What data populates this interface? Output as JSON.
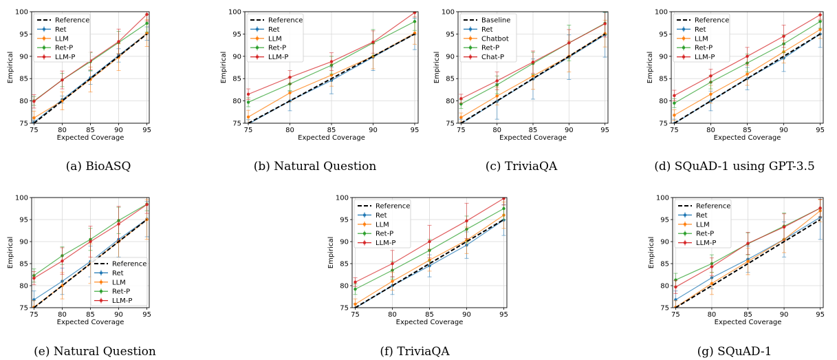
{
  "colors": {
    "reference": "#000000",
    "Ret": "#1f77b4",
    "LLM": "#ff7f0e",
    "Ret-P": "#2ca02c",
    "LLM-P": "#d62728",
    "grid": "#d9d9d9",
    "frame": "#000000"
  },
  "chart_data": [
    {
      "type": "line",
      "caption": "(a) BioASQ",
      "xlabel": "Expected Coverage",
      "ylabel": "Empirical",
      "xlim": [
        75,
        95
      ],
      "ylim": [
        75,
        100
      ],
      "x": [
        75,
        80,
        85,
        90,
        95
      ],
      "xticks": [
        "75",
        "80",
        "85",
        "90",
        "95"
      ],
      "yticks": [
        "75",
        "80",
        "85",
        "90",
        "95",
        "100"
      ],
      "grid": true,
      "legend_position": "top-left",
      "reference": {
        "name": "Reference",
        "values": [
          75,
          80,
          85,
          90,
          95
        ]
      },
      "series": [
        {
          "name": "Ret",
          "color_key": "Ret",
          "values": [
            75.2,
            80.3,
            85.2,
            90.2,
            95.1
          ],
          "err": [
            0.5,
            0.8,
            1.5,
            1.5,
            1.5
          ]
        },
        {
          "name": "LLM",
          "color_key": "LLM",
          "values": [
            76.2,
            80.0,
            84.8,
            89.8,
            95.2
          ],
          "err": [
            1.5,
            2.0,
            2.8,
            3.0,
            3.0
          ]
        },
        {
          "name": "Ret-P",
          "color_key": "Ret-P",
          "values": [
            80.0,
            84.7,
            88.8,
            93.1,
            97.4
          ],
          "err": [
            1.0,
            1.5,
            2.0,
            2.5,
            2.0
          ]
        },
        {
          "name": "LLM-P",
          "color_key": "LLM-P",
          "values": [
            79.9,
            84.7,
            89.0,
            93.3,
            99.4
          ],
          "err": [
            1.5,
            2.0,
            2.0,
            2.8,
            1.5
          ]
        }
      ]
    },
    {
      "type": "line",
      "caption": "(b) Natural Question",
      "xlabel": "Expected Coverage",
      "ylabel": "Empirical",
      "xlim": [
        75,
        95
      ],
      "ylim": [
        75,
        100
      ],
      "x": [
        75,
        80,
        85,
        90,
        95
      ],
      "xticks": [
        "75",
        "80",
        "85",
        "90",
        "95"
      ],
      "yticks": [
        "75",
        "80",
        "85",
        "90",
        "95",
        "100"
      ],
      "grid": true,
      "legend_position": "top-left",
      "reference": {
        "name": "Reference",
        "values": [
          75,
          80,
          85,
          90,
          95
        ]
      },
      "series": [
        {
          "name": "Ret",
          "color_key": "Ret",
          "values": [
            74.8,
            80.0,
            84.6,
            89.8,
            95.0
          ],
          "err": [
            1.0,
            2.2,
            3.0,
            3.0,
            3.5
          ]
        },
        {
          "name": "LLM",
          "color_key": "LLM",
          "values": [
            76.4,
            81.8,
            85.8,
            90.0,
            95.2
          ],
          "err": [
            1.5,
            2.0,
            2.5,
            2.8,
            2.5
          ]
        },
        {
          "name": "Ret-P",
          "color_key": "Ret-P",
          "values": [
            79.7,
            83.8,
            88.0,
            93.0,
            97.8
          ],
          "err": [
            1.0,
            1.5,
            2.0,
            3.0,
            2.0
          ]
        },
        {
          "name": "LLM-P",
          "color_key": "LLM-P",
          "values": [
            81.5,
            85.3,
            88.8,
            93.2,
            99.8
          ],
          "err": [
            1.2,
            1.5,
            2.0,
            2.5,
            1.0
          ]
        }
      ]
    },
    {
      "type": "line",
      "caption": "(c) TriviaQA",
      "xlabel": "Expected Coverage",
      "ylabel": "Empirical",
      "xlim": [
        75,
        95
      ],
      "ylim": [
        75,
        100
      ],
      "x": [
        75,
        80,
        85,
        90,
        95
      ],
      "xticks": [
        "75",
        "80",
        "85",
        "90",
        "95"
      ],
      "yticks": [
        "75",
        "80",
        "85",
        "90",
        "95",
        "100"
      ],
      "grid": true,
      "legend_position": "top-left",
      "reference": {
        "name": "Baseline",
        "values": [
          75,
          80,
          85,
          90,
          95
        ]
      },
      "series": [
        {
          "name": "Ret",
          "color_key": "Ret",
          "values": [
            74.9,
            79.9,
            84.9,
            89.8,
            94.8
          ],
          "err": [
            1.0,
            4.0,
            4.5,
            5.0,
            5.0
          ]
        },
        {
          "name": "Chatbot",
          "color_key": "LLM",
          "values": [
            76.3,
            81.1,
            85.6,
            90.0,
            95.1
          ],
          "err": [
            1.0,
            2.0,
            3.0,
            3.5,
            3.0
          ]
        },
        {
          "name": "Ret-P",
          "color_key": "Ret-P",
          "values": [
            79.3,
            83.6,
            88.4,
            93.0,
            97.4
          ],
          "err": [
            1.0,
            2.0,
            2.5,
            4.0,
            2.5
          ]
        },
        {
          "name": "Chat-P",
          "color_key": "LLM-P",
          "values": [
            80.5,
            84.5,
            88.7,
            93.0,
            97.3
          ],
          "err": [
            1.0,
            2.0,
            2.5,
            3.0,
            3.0
          ]
        }
      ]
    },
    {
      "type": "line",
      "caption": "(d) SQuAD-1 using GPT-3.5",
      "xlabel": "Expected Coverage",
      "ylabel": "Empirical",
      "xlim": [
        75,
        95
      ],
      "ylim": [
        75,
        100
      ],
      "x": [
        75,
        80,
        85,
        90,
        95
      ],
      "xticks": [
        "75",
        "80",
        "85",
        "90",
        "95"
      ],
      "yticks": [
        "75",
        "80",
        "85",
        "90",
        "95",
        "100"
      ],
      "grid": true,
      "legend_position": "top-left",
      "reference": {
        "name": "Reference",
        "values": [
          75,
          80,
          85,
          90,
          95
        ]
      },
      "series": [
        {
          "name": "Ret",
          "color_key": "Ret",
          "values": [
            74.9,
            80.0,
            85.0,
            89.6,
            95.0
          ],
          "err": [
            1.0,
            2.2,
            2.5,
            3.0,
            3.0
          ]
        },
        {
          "name": "LLM",
          "color_key": "LLM",
          "values": [
            76.8,
            81.5,
            86.0,
            91.0,
            96.0
          ],
          "err": [
            1.2,
            2.0,
            2.5,
            2.5,
            2.0
          ]
        },
        {
          "name": "Ret-P",
          "color_key": "Ret-P",
          "values": [
            79.5,
            84.2,
            88.5,
            92.8,
            97.8
          ],
          "err": [
            1.0,
            1.5,
            2.0,
            2.0,
            1.5
          ]
        },
        {
          "name": "LLM-P",
          "color_key": "LLM-P",
          "values": [
            81.2,
            85.6,
            90.0,
            94.5,
            99.3
          ],
          "err": [
            1.2,
            1.5,
            2.0,
            2.5,
            1.0
          ]
        }
      ]
    },
    {
      "type": "line",
      "caption": "(e) Natural Question",
      "xlabel": "Expected Coverage",
      "ylabel": "Empirical",
      "xlim": [
        75,
        95
      ],
      "ylim": [
        75,
        100
      ],
      "x": [
        75,
        80,
        85,
        90,
        95
      ],
      "xticks": [
        "75",
        "80",
        "85",
        "90",
        "95"
      ],
      "yticks": [
        "75",
        "80",
        "85",
        "90",
        "95",
        "100"
      ],
      "grid": true,
      "legend_position": "lower-right",
      "reference": {
        "name": "Reference",
        "values": [
          75,
          80,
          85,
          90,
          95
        ]
      },
      "series": [
        {
          "name": "Ret",
          "color_key": "Ret",
          "values": [
            76.8,
            81.0,
            85.5,
            90.5,
            95.1
          ],
          "err": [
            2.0,
            3.0,
            3.5,
            4.0,
            4.0
          ]
        },
        {
          "name": "LLM",
          "color_key": "LLM",
          "values": [
            75.1,
            80.0,
            85.0,
            90.0,
            95.0
          ],
          "err": [
            1.5,
            3.0,
            4.5,
            4.5,
            4.5
          ]
        },
        {
          "name": "Ret-P",
          "color_key": "Ret-P",
          "values": [
            82.3,
            86.8,
            90.5,
            94.8,
            98.5
          ],
          "err": [
            1.5,
            2.0,
            2.5,
            3.0,
            1.5
          ]
        },
        {
          "name": "LLM-P",
          "color_key": "LLM-P",
          "values": [
            81.7,
            85.6,
            90.0,
            94.0,
            98.4
          ],
          "err": [
            1.5,
            3.0,
            3.5,
            4.0,
            2.0
          ]
        }
      ]
    },
    {
      "type": "line",
      "caption": "(f) TriviaQA",
      "xlabel": "Expected Coverage",
      "ylabel": "Empirical",
      "xlim": [
        75,
        95
      ],
      "ylim": [
        75,
        100
      ],
      "x": [
        75,
        80,
        85,
        90,
        95
      ],
      "xticks": [
        "75",
        "80",
        "85",
        "90",
        "95"
      ],
      "yticks": [
        "75",
        "80",
        "85",
        "90",
        "95",
        "100"
      ],
      "grid": true,
      "legend_position": "top-left",
      "reference": {
        "name": "Reference",
        "values": [
          75,
          80,
          85,
          90,
          95
        ]
      },
      "series": [
        {
          "name": "Ret",
          "color_key": "Ret",
          "values": [
            74.9,
            80.0,
            84.5,
            89.2,
            94.9
          ],
          "err": [
            1.0,
            2.0,
            2.5,
            3.0,
            3.5
          ]
        },
        {
          "name": "LLM",
          "color_key": "LLM",
          "values": [
            75.8,
            81.0,
            85.8,
            90.3,
            96.0
          ],
          "err": [
            1.2,
            2.0,
            2.5,
            3.0,
            3.0
          ]
        },
        {
          "name": "Ret-P",
          "color_key": "Ret-P",
          "values": [
            79.2,
            83.5,
            88.0,
            92.8,
            97.5
          ],
          "err": [
            1.2,
            2.0,
            2.5,
            3.0,
            2.5
          ]
        },
        {
          "name": "LLM-P",
          "color_key": "LLM-P",
          "values": [
            80.8,
            85.0,
            90.0,
            94.7,
            99.8
          ],
          "err": [
            1.0,
            3.0,
            3.7,
            4.0,
            1.5
          ]
        }
      ]
    },
    {
      "type": "line",
      "caption": "(g) SQuAD-1",
      "xlabel": "Expected Coverage",
      "ylabel": "Empirical",
      "xlim": [
        75,
        95
      ],
      "ylim": [
        75,
        100
      ],
      "x": [
        75,
        80,
        85,
        90,
        95
      ],
      "xticks": [
        "75",
        "80",
        "85",
        "90",
        "95"
      ],
      "yticks": [
        "75",
        "80",
        "85",
        "90",
        "95",
        "100"
      ],
      "grid": true,
      "legend_position": "top-left",
      "reference": {
        "name": "Reference",
        "values": [
          75,
          80,
          85,
          90,
          95
        ]
      },
      "series": [
        {
          "name": "Ret",
          "color_key": "Ret",
          "values": [
            76.8,
            81.8,
            86.0,
            90.5,
            95.5
          ],
          "err": [
            2.0,
            2.5,
            3.0,
            4.0,
            5.0
          ]
        },
        {
          "name": "LLM",
          "color_key": "LLM",
          "values": [
            75.1,
            80.5,
            85.5,
            90.5,
            97.0
          ],
          "err": [
            1.5,
            2.5,
            3.0,
            3.0,
            2.5
          ]
        },
        {
          "name": "Ret-P",
          "color_key": "Ret-P",
          "values": [
            81.3,
            85.0,
            89.5,
            93.5,
            97.6
          ],
          "err": [
            1.5,
            2.0,
            2.5,
            3.0,
            2.0
          ]
        },
        {
          "name": "LLM-P",
          "color_key": "LLM-P",
          "values": [
            79.7,
            84.3,
            89.6,
            93.3,
            97.6
          ],
          "err": [
            1.5,
            2.0,
            2.5,
            3.0,
            2.0
          ]
        }
      ]
    }
  ]
}
